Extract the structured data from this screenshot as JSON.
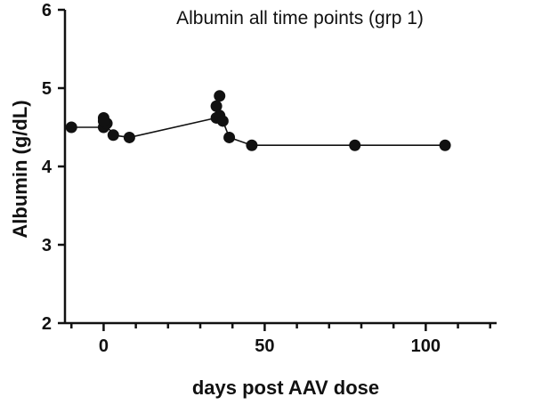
{
  "chart_data": {
    "type": "line",
    "title": "Albumin all time points (grp 1)",
    "xlabel": "days post AAV dose",
    "ylabel": "Albumin (g/dL)",
    "xlim": [
      -12,
      122
    ],
    "ylim": [
      2,
      6
    ],
    "x_ticks": [
      0,
      50,
      100
    ],
    "x_tick_labels": [
      "0",
      "50",
      "100"
    ],
    "x_minor_ticks": [
      -10,
      10,
      20,
      30,
      40,
      60,
      70,
      80,
      90,
      110,
      120
    ],
    "y_ticks": [
      2,
      3,
      4,
      5,
      6
    ],
    "y_tick_labels": [
      "2",
      "3",
      "4",
      "5",
      "6"
    ],
    "grid": false,
    "legend": "none",
    "series": [
      {
        "x": [
          -10,
          0,
          0,
          1,
          0,
          3,
          8,
          35,
          36,
          35,
          36,
          37,
          39,
          46,
          78,
          106
        ],
        "y": [
          4.5,
          4.5,
          4.62,
          4.55,
          4.58,
          4.4,
          4.37,
          4.62,
          4.9,
          4.77,
          4.65,
          4.58,
          4.37,
          4.27,
          4.27,
          4.27
        ]
      }
    ]
  }
}
